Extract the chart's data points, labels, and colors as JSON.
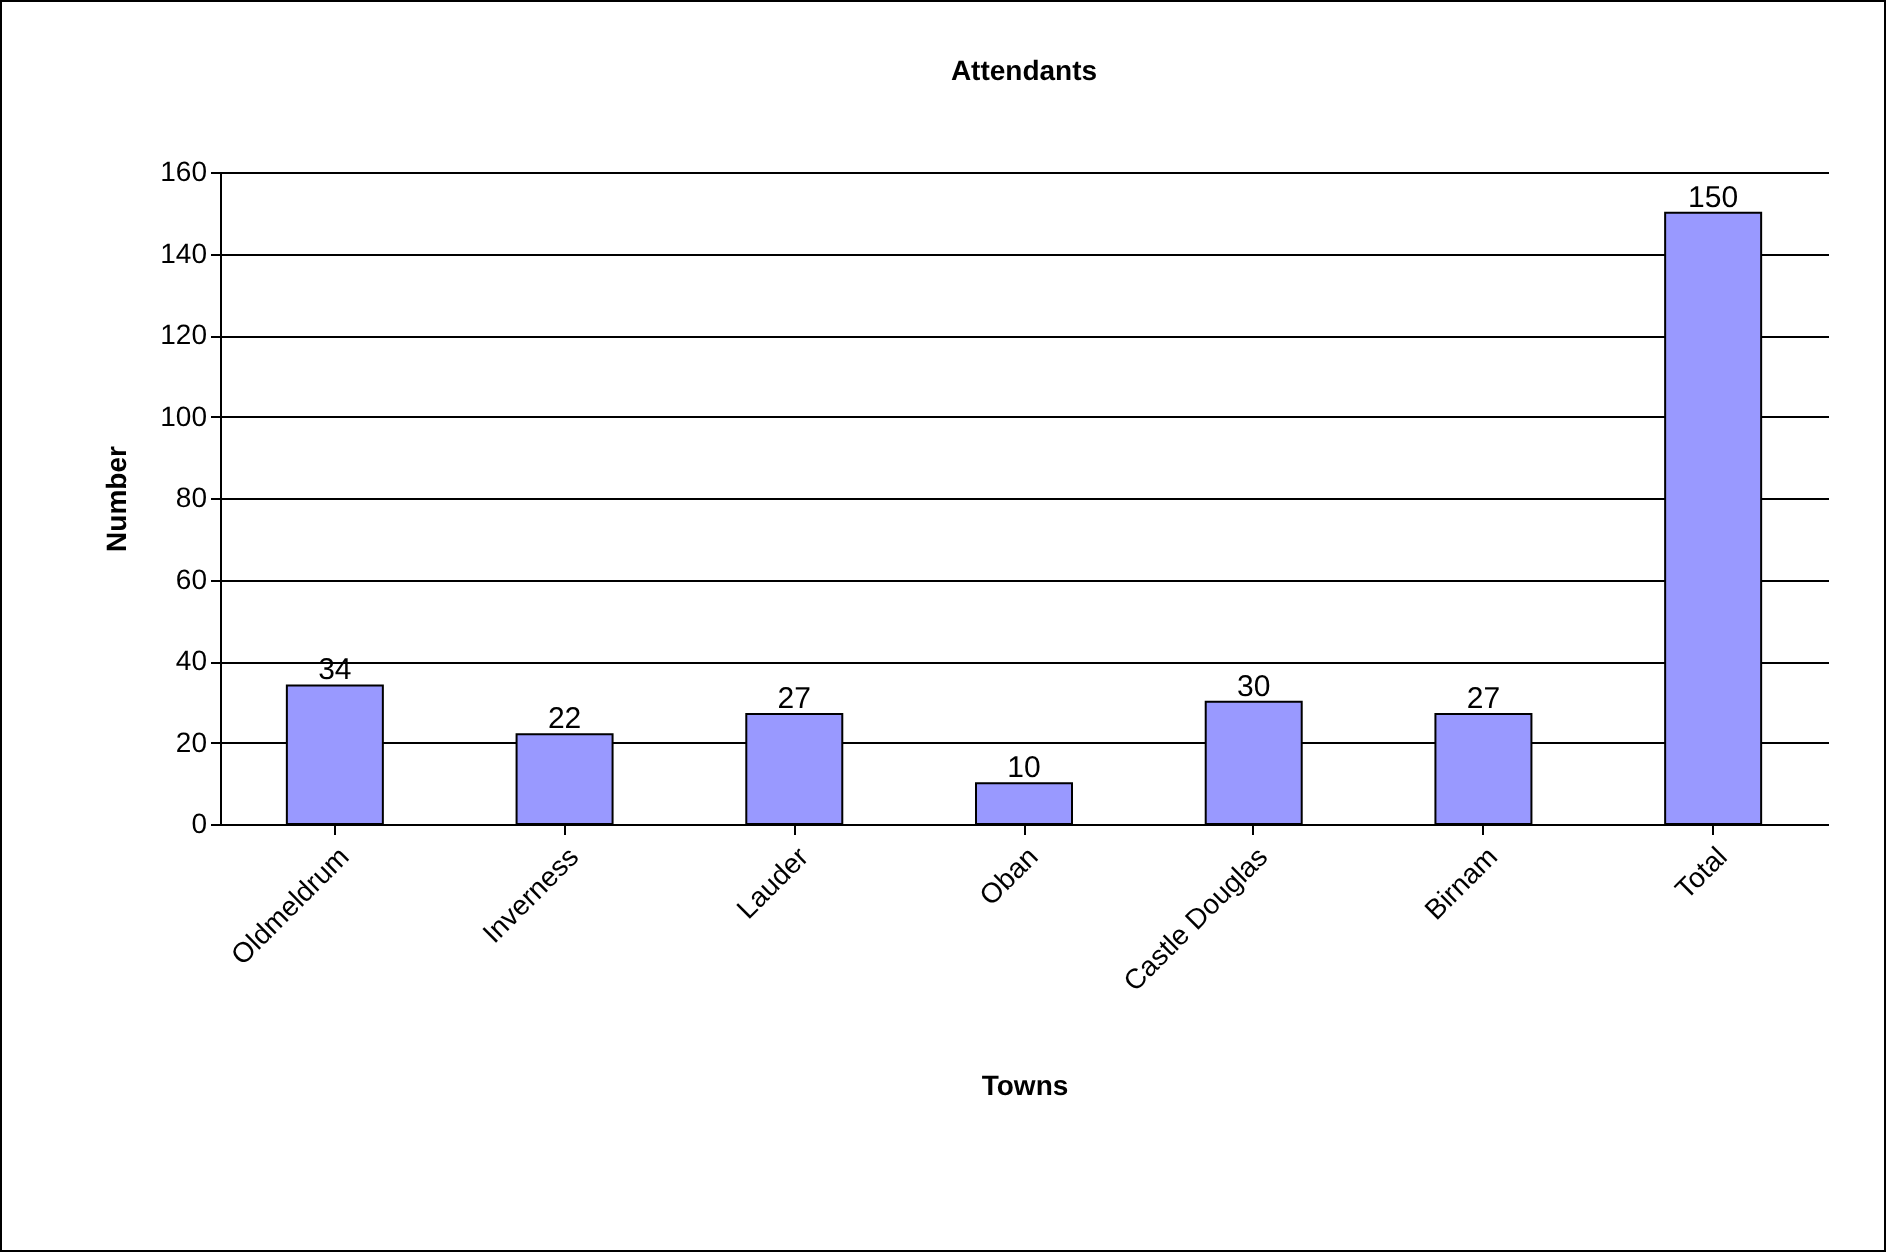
{
  "chart_data": {
    "type": "bar",
    "title": "Attendants",
    "xlabel": "Towns",
    "ylabel": "Number",
    "categories": [
      "Oldmeldrum",
      "Inverness",
      "Lauder",
      "Oban",
      "Castle Douglas",
      "Birnam",
      "Total"
    ],
    "values": [
      34,
      22,
      27,
      10,
      30,
      27,
      150
    ],
    "color": "#9999ff",
    "ylim": [
      0,
      160
    ],
    "yticks": [
      0,
      20,
      40,
      60,
      80,
      100,
      120,
      140,
      160
    ],
    "grid": "y",
    "data_labels": true
  }
}
